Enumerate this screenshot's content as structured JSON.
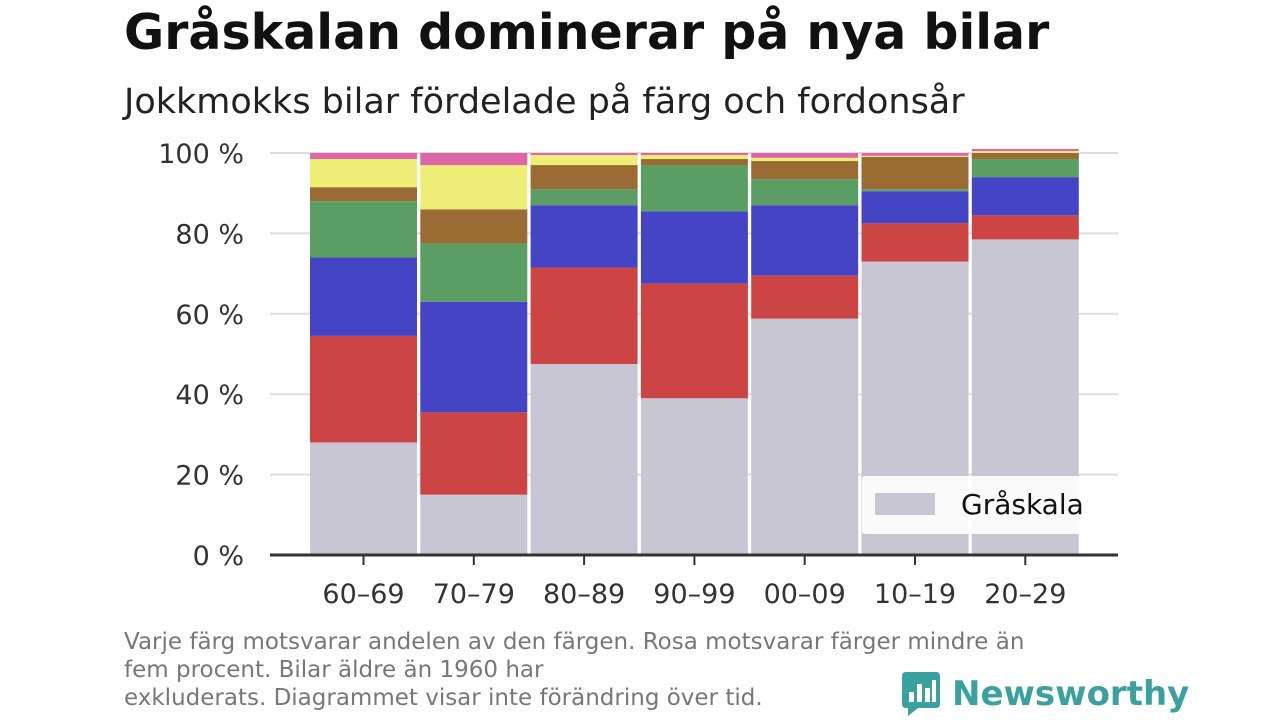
{
  "header": {
    "title": "Gråskalan dominerar på nya bilar",
    "subtitle": "Jokkmokks bilar fördelade på färg och fordonsår"
  },
  "chart_data": {
    "type": "bar",
    "stacked": true,
    "categories": [
      "60–69",
      "70–79",
      "80–89",
      "90–99",
      "00–09",
      "10–19",
      "20–29"
    ],
    "ylim": [
      0,
      100
    ],
    "yticks": [
      0,
      20,
      40,
      60,
      80,
      100
    ],
    "ytick_labels": [
      "0 %",
      "20 %",
      "40 %",
      "60 %",
      "80 %",
      "100 %"
    ],
    "grid": true,
    "legend_position": "bottom-right",
    "series": [
      {
        "name": "Gråskala",
        "color": "#c8c6d3",
        "values": [
          28,
          15,
          47.5,
          39,
          58.8,
          73,
          78.5
        ]
      },
      {
        "color": "#cc4444",
        "values": [
          26.5,
          20.5,
          24,
          28.5,
          10.7,
          9.5,
          6
        ]
      },
      {
        "color": "#4444c4",
        "values": [
          19.5,
          27.5,
          15.5,
          18,
          17.5,
          8,
          9.5
        ]
      },
      {
        "color": "#5a9e63",
        "values": [
          14,
          14.5,
          4,
          11.5,
          6.5,
          0.5,
          4.5
        ]
      },
      {
        "color": "#9a6b33",
        "values": [
          3.5,
          8.5,
          6,
          1.5,
          4.5,
          8,
          1.5
        ]
      },
      {
        "color": "#eeee77",
        "values": [
          7,
          11,
          2.5,
          1,
          0.8,
          0.3,
          0.5
        ]
      },
      {
        "color": "#dd66aa",
        "values": [
          1.5,
          3,
          0.5,
          0.5,
          1.2,
          0.7,
          0.5
        ]
      }
    ]
  },
  "footer": {
    "note_lines": [
      "Varje färg motsvarar andelen av den färgen. Rosa motsvarar färger mindre än",
      "fem procent. Bilar äldre än 1960 har",
      "exkluderats. Diagrammet visar inte förändring över tid."
    ],
    "brand": "Newsworthy",
    "brand_color": "#3aa19e"
  }
}
